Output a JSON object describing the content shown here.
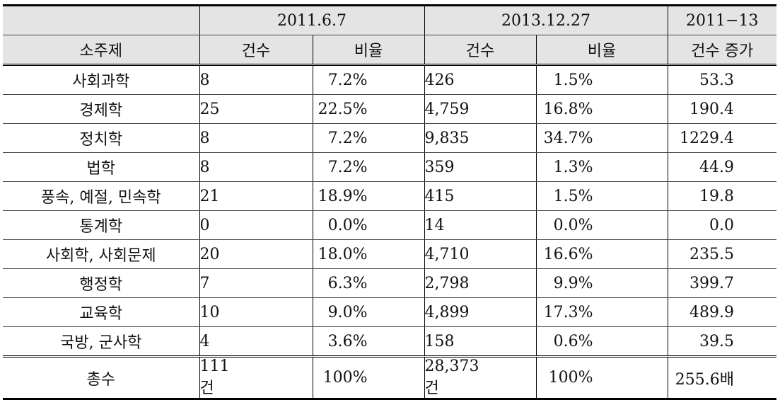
{
  "header": {
    "period1": "2011.6.7",
    "period2": "2013.12.27",
    "period3": "2011−13",
    "col_subject": "소주제",
    "col_count1": "건수",
    "col_ratio1": "비율",
    "col_count2": "건수",
    "col_ratio2": "비율",
    "col_increase": "건수 증가"
  },
  "rows": [
    {
      "subject": "사회과학",
      "count1": "8",
      "ratio1": "7.2%",
      "count2": "426",
      "ratio2": "1.5%",
      "increase": "53.3"
    },
    {
      "subject": "경제학",
      "count1": "25",
      "ratio1": "22.5%",
      "count2": "4,759",
      "ratio2": "16.8%",
      "increase": "190.4"
    },
    {
      "subject": "정치학",
      "count1": "8",
      "ratio1": "7.2%",
      "count2": "9,835",
      "ratio2": "34.7%",
      "increase": "1229.4"
    },
    {
      "subject": "법학",
      "count1": "8",
      "ratio1": "7.2%",
      "count2": "359",
      "ratio2": "1.3%",
      "increase": "44.9"
    },
    {
      "subject": "풍속, 예절, 민속학",
      "count1": "21",
      "ratio1": "18.9%",
      "count2": "415",
      "ratio2": "1.5%",
      "increase": "19.8"
    },
    {
      "subject": "통계학",
      "count1": "0",
      "ratio1": "0.0%",
      "count2": "14",
      "ratio2": "0.0%",
      "increase": "0.0"
    },
    {
      "subject": "사회학, 사회문제",
      "count1": "20",
      "ratio1": "18.0%",
      "count2": "4,710",
      "ratio2": "16.6%",
      "increase": "235.5"
    },
    {
      "subject": "행정학",
      "count1": "7",
      "ratio1": "6.3%",
      "count2": "2,798",
      "ratio2": "9.9%",
      "increase": "399.7"
    },
    {
      "subject": "교육학",
      "count1": "10",
      "ratio1": "9.0%",
      "count2": "4,899",
      "ratio2": "17.3%",
      "increase": "489.9"
    },
    {
      "subject": "국방, 군사학",
      "count1": "4",
      "ratio1": "3.6%",
      "count2": "158",
      "ratio2": "0.6%",
      "increase": "39.5"
    }
  ],
  "total": {
    "subject": "총수",
    "count1": "111건",
    "ratio1": "100%",
    "count2": "28,373건",
    "ratio2": "100%",
    "increase": "255.6배"
  }
}
